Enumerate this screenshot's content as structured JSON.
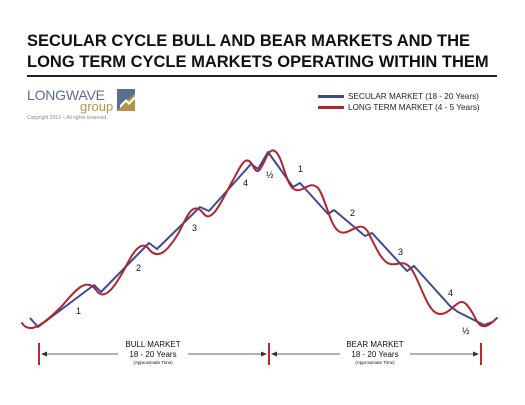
{
  "title": {
    "line1": "SECULAR CYCLE BULL AND BEAR  MARKETS AND THE",
    "line2": "LONG TERM CYCLE MARKETS OPERATING WITHIN THEM"
  },
  "logo": {
    "word1": "LONGWAVE",
    "word2": "group",
    "copyright": "Copyright 2013 – All rights reserved."
  },
  "legend": {
    "items": [
      {
        "label": "SECULAR MARKET (18  - 20 Years)",
        "color": "#3f4a94"
      },
      {
        "label": "LONG TERM MARKET (4 - 5 Years)",
        "color": "#b0262e"
      }
    ]
  },
  "colors": {
    "secular": "#3f4a94",
    "longterm": "#b0262e",
    "timeline": "#c0262e"
  },
  "cycle_labels": {
    "bull": [
      "1",
      "2",
      "3",
      "4",
      "½"
    ],
    "bear": [
      "1",
      "2",
      "3",
      "4",
      "½"
    ]
  },
  "markets": {
    "bull": {
      "name": "BULL MARKET",
      "span": "18 - 20 Years",
      "note": "(Approximate Time)"
    },
    "bear": {
      "name": "BEAR MARKET",
      "span": "18 - 20 Years",
      "note": "(Approximate Time)"
    }
  }
}
